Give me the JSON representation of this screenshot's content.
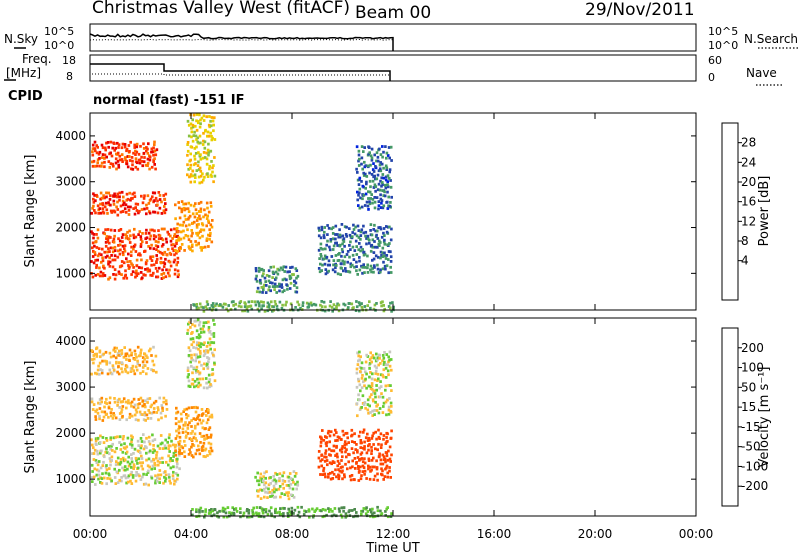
{
  "header": {
    "station": "Christmas Valley West (fitACF)",
    "beam": "Beam 00",
    "date": "29/Nov/2011"
  },
  "noise_panel": {
    "left_label": "N.Sky",
    "right_label": "N.Search",
    "left_ticks": [
      "10^5",
      "10^0"
    ],
    "right_ticks": [
      "10^5",
      "10^0"
    ]
  },
  "freq_panel": {
    "left_label_line1": "Freq.",
    "left_label_line2": "[MHz]",
    "right_label": "Nave",
    "left_ticks": [
      "18",
      "8"
    ],
    "right_ticks": [
      "60",
      "0"
    ]
  },
  "cpid": {
    "label": "CPID",
    "text": "normal (fast) -151 IF"
  },
  "chart_data": [
    {
      "type": "heatmap",
      "name": "power",
      "ylabel": "Slant Range [km]",
      "ylim": [
        200,
        4500
      ],
      "yticks": [
        "1000",
        "2000",
        "3000",
        "4000"
      ],
      "xlim": [
        "00:00",
        "24:00"
      ],
      "colorbar_label": "Power [dB]",
      "colorbar_ticks": [
        "28",
        "24",
        "20",
        "16",
        "12",
        "8",
        "4"
      ],
      "colorbar_colors": [
        "#e60000",
        "#ff3300",
        "#ff7700",
        "#ffaa00",
        "#e8d000",
        "#88c040",
        "#449966",
        "#2244aa",
        "#0022dd"
      ],
      "regions": [
        {
          "t0": 0.0,
          "t1": 3.5,
          "r0": 900,
          "r1": 2000,
          "level": 28
        },
        {
          "t0": 0.0,
          "t1": 3.0,
          "r0": 2300,
          "r1": 2800,
          "level": 28
        },
        {
          "t0": 0.0,
          "t1": 2.6,
          "r0": 3300,
          "r1": 3900,
          "level": 28
        },
        {
          "t0": 3.3,
          "t1": 4.8,
          "r0": 1500,
          "r1": 2600,
          "level": 22
        },
        {
          "t0": 3.8,
          "t1": 4.9,
          "r0": 3000,
          "r1": 4500,
          "level": 16
        },
        {
          "t0": 9.0,
          "t1": 11.9,
          "r0": 1000,
          "r1": 2100,
          "level": 6
        },
        {
          "t0": 6.5,
          "t1": 8.2,
          "r0": 600,
          "r1": 1200,
          "level": 7
        },
        {
          "t0": 10.5,
          "t1": 11.9,
          "r0": 2400,
          "r1": 3800,
          "level": 5
        },
        {
          "t0": 4.0,
          "t1": 12.0,
          "r0": 200,
          "r1": 420,
          "level": 10
        }
      ]
    },
    {
      "type": "heatmap",
      "name": "velocity",
      "ylabel": "Slant Range [km]",
      "ylim": [
        200,
        4500
      ],
      "yticks": [
        "1000",
        "2000",
        "3000",
        "4000"
      ],
      "xlabel": "Time UT",
      "xticks": [
        "00:00",
        "04:00",
        "08:00",
        "12:00",
        "16:00",
        "20:00",
        "00:00"
      ],
      "colorbar_label": "Velocity [m s⁻¹]",
      "colorbar_ticks": [
        "200",
        "100",
        "50",
        "15",
        "-15",
        "-50",
        "-100",
        "-200"
      ],
      "colorbar_colors": [
        "#1e3c9f",
        "#3a6abf",
        "#4d8a4d",
        "#66cc33",
        "#c8c8c0",
        "#ffbb33",
        "#ff8800",
        "#ff4400",
        "#e60000"
      ],
      "regions": [
        {
          "t0": 0.0,
          "t1": 3.5,
          "r0": 900,
          "r1": 2000,
          "level": 0
        },
        {
          "t0": 0.0,
          "t1": 3.0,
          "r0": 2300,
          "r1": 2800,
          "level": -20
        },
        {
          "t0": 0.0,
          "t1": 2.6,
          "r0": 3300,
          "r1": 3900,
          "level": -20
        },
        {
          "t0": 3.3,
          "t1": 4.8,
          "r0": 1500,
          "r1": 2600,
          "level": -30
        },
        {
          "t0": 3.8,
          "t1": 4.9,
          "r0": 3000,
          "r1": 4500,
          "level": 0
        },
        {
          "t0": 9.0,
          "t1": 11.9,
          "r0": 1000,
          "r1": 2100,
          "level": -120
        },
        {
          "t0": 6.5,
          "t1": 8.2,
          "r0": 600,
          "r1": 1200,
          "level": 0
        },
        {
          "t0": 10.5,
          "t1": 11.9,
          "r0": 2400,
          "r1": 3800,
          "level": 0
        },
        {
          "t0": 4.0,
          "t1": 12.0,
          "r0": 200,
          "r1": 420,
          "level": 30
        }
      ]
    }
  ]
}
